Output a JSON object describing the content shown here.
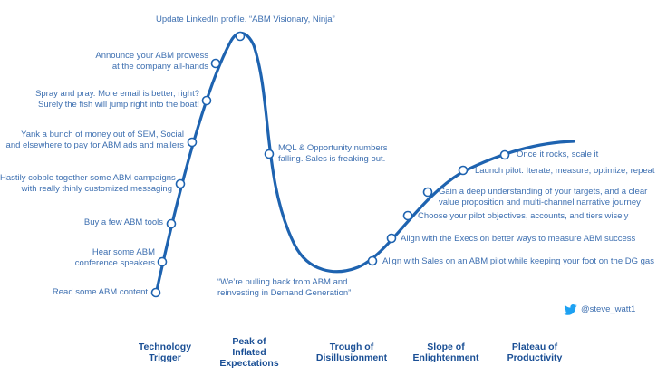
{
  "labels": {
    "l1": "Update LinkedIn profile. “ABM Visionary, Ninja”",
    "l2a": "Announce your ABM prowess",
    "l2b": "at the company all-hands",
    "l3a": "Spray and pray. More email is better, right?",
    "l3b": "Surely the fish will jump right into the boat!",
    "l4a": "Yank a bunch of money out of SEM, Social",
    "l4b": "and elsewhere to pay for ABM ads and mailers",
    "l5a": "Hastily cobble together some ABM campaigns",
    "l5b": "with really thinly customized messaging",
    "l6": "Buy a few ABM tools",
    "l7a": "Hear some ABM",
    "l7b": "conference speakers",
    "l8": "Read some ABM content",
    "l9a": "MQL & Opportunity numbers",
    "l9b": "falling. Sales is freaking out.",
    "l10a": "“We’re pulling back from ABM and",
    "l10b": "reinvesting in Demand Generation”",
    "l11": "Align with Sales on an ABM pilot while keeping your foot on the DG gas",
    "l12": "Align with the Execs on better ways to measure ABM success",
    "l13": "Choose your pilot objectives, accounts, and tiers wisely",
    "l14a": "Gain a deep understanding of your targets, and a clear",
    "l14b": "value proposition and multi-channel narrative journey",
    "l15": "Launch pilot. Iterate, measure, optimize, repeat",
    "l16": "Once it rocks, scale it"
  },
  "phases": {
    "p1a": "Technology",
    "p1b": "Trigger",
    "p2a": "Peak of",
    "p2b": "Inflated",
    "p2c": "Expectations",
    "p3a": "Trough of",
    "p3b": "Disillusionment",
    "p4a": "Slope of",
    "p4b": "Enlightenment",
    "p5a": "Plateau of",
    "p5b": "Productivity"
  },
  "handle": "@steve_watt1",
  "icons": {
    "social": "twitter-bird-icon"
  },
  "colors": {
    "curve": "#1e63b0",
    "label": "#3d6fb0",
    "phase": "#1a4f95"
  }
}
